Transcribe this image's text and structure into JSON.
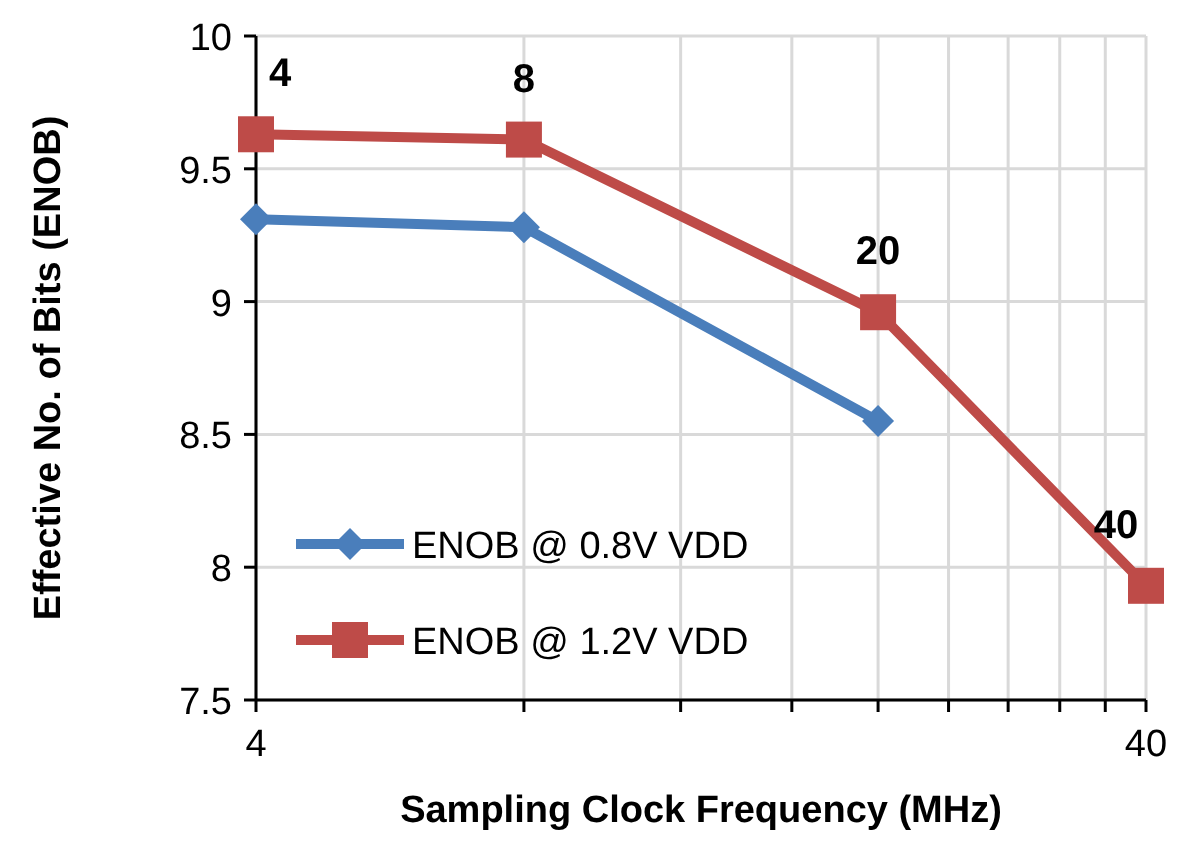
{
  "chart_data": {
    "type": "line",
    "xlabel": "Sampling Clock Frequency (MHz)",
    "ylabel": "Effective No. of Bits (ENOB)",
    "log": "x",
    "xlim": [
      4,
      40
    ],
    "xticks": [
      4,
      {
        "value": 8,
        "label": null
      },
      {
        "value": 12,
        "label": null
      },
      {
        "value": 16,
        "label": null
      },
      {
        "value": 20,
        "label": null
      },
      {
        "value": 24,
        "label": null
      },
      {
        "value": 28,
        "label": null
      },
      {
        "value": 32,
        "label": null
      },
      {
        "value": 36,
        "label": null
      },
      40
    ],
    "ylim": [
      7.5,
      10
    ],
    "yticks": [
      7.5,
      8,
      8.5,
      9,
      9.5,
      10
    ],
    "grid": true,
    "legend": "bottom left",
    "x": [
      4,
      8,
      20,
      40
    ],
    "series": [
      {
        "name": "ENOB @ 0.8V VDD",
        "color": "#4a7ebb",
        "marker": "diamond",
        "values": [
          9.31,
          9.28,
          8.55,
          null
        ]
      },
      {
        "name": "ENOB @ 1.2V VDD",
        "color": "#be4b48",
        "marker": "square",
        "values": [
          9.63,
          9.61,
          8.96,
          7.93
        ]
      }
    ],
    "annotations": [
      {
        "text": "4",
        "x": 4,
        "y": 9.63
      },
      {
        "text": "8",
        "x": 8,
        "y": 9.61
      },
      {
        "text": "20",
        "x": 20,
        "y": 8.96
      },
      {
        "text": "40",
        "x": 40,
        "y": 7.93
      }
    ]
  }
}
